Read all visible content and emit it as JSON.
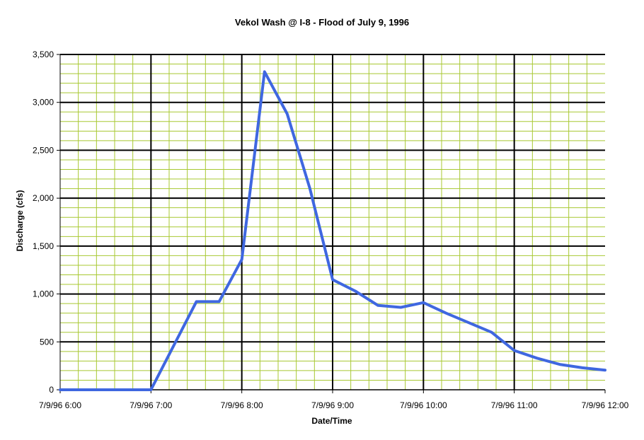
{
  "chart_data": {
    "type": "line",
    "title": "Vekol Wash @ I-8 - Flood of July 9, 1996",
    "xlabel": "Date/Time",
    "ylabel": "Discharge (cfs)",
    "x_tick_labels": [
      "7/9/96 6:00",
      "7/9/96 7:00",
      "7/9/96 8:00",
      "7/9/96 9:00",
      "7/9/96 10:00",
      "7/9/96 11:00",
      "7/9/96 12:00"
    ],
    "y_tick_labels": [
      "0",
      "500",
      "1,000",
      "1,500",
      "2,000",
      "2,500",
      "3,000",
      "3,500"
    ],
    "xlim": [
      "7/9/96 6:00",
      "7/9/96 12:00"
    ],
    "ylim": [
      0,
      3500
    ],
    "y_major_step": 500,
    "y_minor_step": 100,
    "x_minor_step_minutes": 12,
    "grid": true,
    "colors": {
      "line": "#3f67e0",
      "minor_grid": "#a8c832",
      "major_grid": "#000000",
      "plot_background": "#ffffff"
    },
    "series": [
      {
        "x": [
          "7/9/96 6:00",
          "7/9/96 7:00",
          "7/9/96 7:30",
          "7/9/96 7:45",
          "7/9/96 8:00",
          "7/9/96 8:15",
          "7/9/96 8:30",
          "7/9/96 8:45",
          "7/9/96 9:00",
          "7/9/96 9:15",
          "7/9/96 9:30",
          "7/9/96 9:45",
          "7/9/96 10:00",
          "7/9/96 10:15",
          "7/9/96 10:30",
          "7/9/96 10:45",
          "7/9/96 11:00",
          "7/9/96 11:15",
          "7/9/96 11:30",
          "7/9/96 11:45",
          "7/9/96 12:00"
        ],
        "values": [
          0,
          0,
          920,
          920,
          1360,
          3320,
          2880,
          2100,
          1150,
          1030,
          880,
          860,
          910,
          800,
          700,
          600,
          410,
          330,
          265,
          230,
          205
        ]
      }
    ]
  }
}
